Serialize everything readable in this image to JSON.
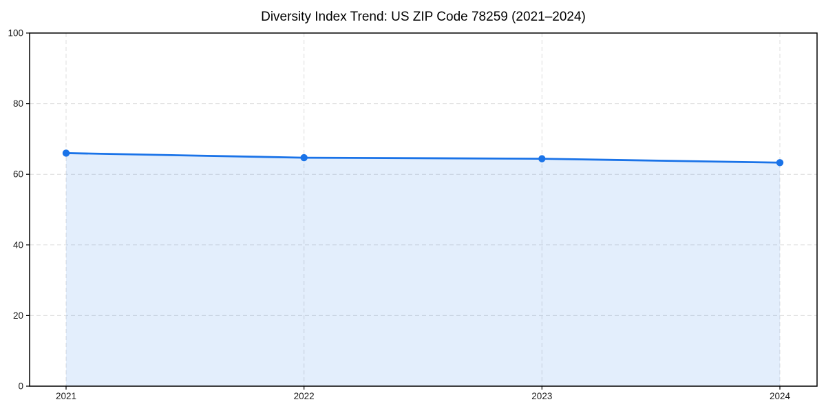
{
  "figure": {
    "background_color": "#ffffff"
  },
  "chart_data": {
    "type": "area",
    "title": "Diversity Index Trend: US ZIP Code 78259 (2021–2024)",
    "x": [
      2021,
      2022,
      2023,
      2024
    ],
    "series": [
      {
        "name": "Diversity Index",
        "values": [
          66.0,
          64.7,
          64.4,
          63.3
        ]
      }
    ],
    "xlabel": "",
    "ylabel": "",
    "xtick_labels": [
      "2021",
      "2022",
      "2023",
      "2024"
    ],
    "yticks": [
      0,
      20,
      40,
      60,
      80,
      100
    ],
    "ylim": [
      0,
      100
    ],
    "grid": true,
    "grid_style": "dashed",
    "legend": "none",
    "marker": "circle",
    "colors": {
      "line": "#1a73e8",
      "marker": "#1a73e8",
      "fill": "#1a73e8",
      "fill_opacity": 0.12,
      "grid": "#dcdcdc",
      "spine": "#000000",
      "tick": "#000000",
      "tick_label": "#1a1a1a",
      "title": "#000000"
    }
  }
}
